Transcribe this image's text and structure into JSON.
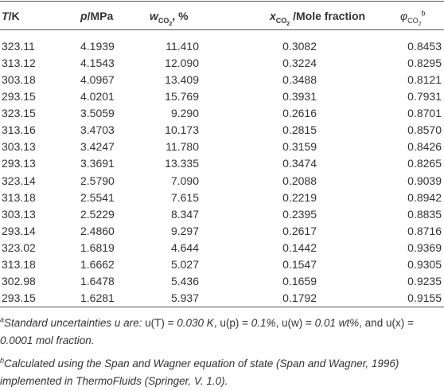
{
  "table": {
    "columns": [
      {
        "symbol": "T",
        "unit": "/K"
      },
      {
        "symbol": "p",
        "unit": "/MPa"
      },
      {
        "symbol": "w",
        "sub": "CO",
        "subsub": "2",
        "unit": ", %"
      },
      {
        "symbol": "x",
        "sub": "CO",
        "subsub": "2",
        "unit": " /Mole fraction"
      },
      {
        "symbol": "φ",
        "sub": "CO",
        "subsub": "2",
        "note": "b"
      }
    ],
    "rows": [
      [
        "323.11",
        "4.1939",
        "11.410",
        "0.3082",
        "0.8453"
      ],
      [
        "313.12",
        "4.1543",
        "12.090",
        "0.3224",
        "0.8295"
      ],
      [
        "303.18",
        "4.0967",
        "13.409",
        "0.3488",
        "0.8121"
      ],
      [
        "293.15",
        "4.0201",
        "15.769",
        "0.3931",
        "0.7931"
      ],
      [
        "323.15",
        "3.5059",
        "9.290",
        "0.2616",
        "0.8701"
      ],
      [
        "313.16",
        "3.4703",
        "10.173",
        "0.2815",
        "0.8570"
      ],
      [
        "303.13",
        "3.4247",
        "11.780",
        "0.3159",
        "0.8426"
      ],
      [
        "293.13",
        "3.3691",
        "13.335",
        "0.3474",
        "0.8265"
      ],
      [
        "323.14",
        "2.5790",
        "7.090",
        "0.2088",
        "0.9039"
      ],
      [
        "313.18",
        "2.5541",
        "7.615",
        "0.2219",
        "0.8942"
      ],
      [
        "303.13",
        "2.5229",
        "8.347",
        "0.2395",
        "0.8835"
      ],
      [
        "293.14",
        "2.4860",
        "9.297",
        "0.2617",
        "0.8716"
      ],
      [
        "323.02",
        "1.6819",
        "4.644",
        "0.1442",
        "0.9369"
      ],
      [
        "313.18",
        "1.6662",
        "5.027",
        "0.1547",
        "0.9305"
      ],
      [
        "302.98",
        "1.6478",
        "5.436",
        "0.1659",
        "0.9235"
      ],
      [
        "293.15",
        "1.6281",
        "5.937",
        "0.1792",
        "0.9155"
      ]
    ]
  },
  "footnotes": [
    {
      "marker": "a",
      "segments": [
        {
          "text": "Standard uncertainties u are:",
          "italic": true
        },
        {
          "text": " u(T) = ",
          "italic": false
        },
        {
          "text": "0.030 K",
          "italic": true
        },
        {
          "text": ", u(p) = ",
          "italic": false
        },
        {
          "text": "0.1%",
          "italic": true
        },
        {
          "text": ", u(w) = ",
          "italic": false
        },
        {
          "text": "0.01 wt%",
          "italic": true
        },
        {
          "text": ", and u(x) = ",
          "italic": false
        },
        {
          "text": "0.0001 mol fraction.",
          "italic": true
        }
      ]
    },
    {
      "marker": "b",
      "segments": [
        {
          "text": "Calculated using the Span and Wagner equation of state (Span and Wagner, 1996) implemented in ThermoFluids (Springer, V. 1.0).",
          "italic": true
        }
      ]
    }
  ]
}
